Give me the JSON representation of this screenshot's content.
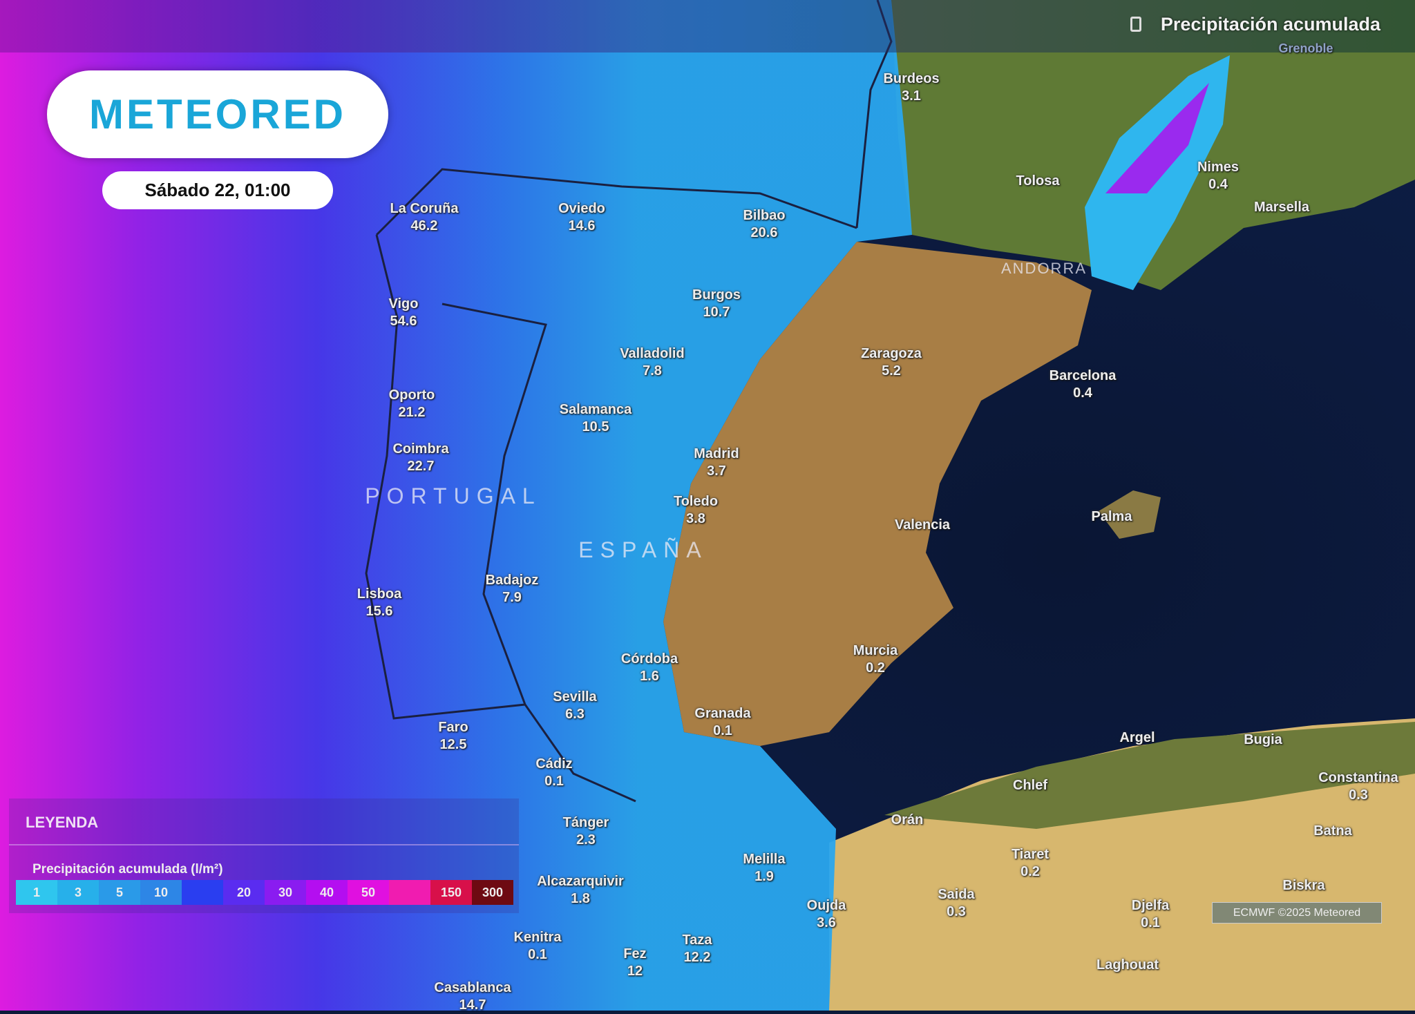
{
  "header": {
    "title": "Precipitación acumulada",
    "subtitle_city": "Grenoble",
    "layer_icon": "layer-icon"
  },
  "brand": {
    "logo_text": "METEORED",
    "color": "#1aa6d8"
  },
  "date_label": "Sábado 22, 01:00",
  "countries": [
    "PORTUGAL",
    "ESPAÑA",
    "ANDORRA"
  ],
  "cities": [
    {
      "name": "La Coruña",
      "value": "46.2"
    },
    {
      "name": "Oviedo",
      "value": "14.6"
    },
    {
      "name": "Bilbao",
      "value": "20.6"
    },
    {
      "name": "Burdeos",
      "value": "3.1"
    },
    {
      "name": "Tolosa",
      "value": ""
    },
    {
      "name": "Nimes",
      "value": "0.4"
    },
    {
      "name": "Marsella",
      "value": ""
    },
    {
      "name": "Vigo",
      "value": "54.6"
    },
    {
      "name": "Burgos",
      "value": "10.7"
    },
    {
      "name": "Valladolid",
      "value": "7.8"
    },
    {
      "name": "Zaragoza",
      "value": "5.2"
    },
    {
      "name": "Barcelona",
      "value": "0.4"
    },
    {
      "name": "Oporto",
      "value": "21.2"
    },
    {
      "name": "Salamanca",
      "value": "10.5"
    },
    {
      "name": "Madrid",
      "value": "3.7"
    },
    {
      "name": "Coimbra",
      "value": "22.7"
    },
    {
      "name": "Toledo",
      "value": "3.8"
    },
    {
      "name": "Valencia",
      "value": ""
    },
    {
      "name": "Palma",
      "value": ""
    },
    {
      "name": "Lisboa",
      "value": "15.6"
    },
    {
      "name": "Badajoz",
      "value": "7.9"
    },
    {
      "name": "Murcia",
      "value": "0.2"
    },
    {
      "name": "Córdoba",
      "value": "1.6"
    },
    {
      "name": "Sevilla",
      "value": "6.3"
    },
    {
      "name": "Granada",
      "value": "0.1"
    },
    {
      "name": "Faro",
      "value": "12.5"
    },
    {
      "name": "Cádiz",
      "value": "0.1"
    },
    {
      "name": "Argel",
      "value": ""
    },
    {
      "name": "Bugia",
      "value": ""
    },
    {
      "name": "Constantina",
      "value": "0.3"
    },
    {
      "name": "Chlef",
      "value": ""
    },
    {
      "name": "Tánger",
      "value": "2.3"
    },
    {
      "name": "Orán",
      "value": ""
    },
    {
      "name": "Batna",
      "value": ""
    },
    {
      "name": "Melilla",
      "value": "1.9"
    },
    {
      "name": "Tiaret",
      "value": "0.2"
    },
    {
      "name": "Alcazarquivir",
      "value": "1.8"
    },
    {
      "name": "Saida",
      "value": "0.3"
    },
    {
      "name": "Djelfa",
      "value": "0.1"
    },
    {
      "name": "Biskra",
      "value": ""
    },
    {
      "name": "Oujda",
      "value": "3.6"
    },
    {
      "name": "Kenitra",
      "value": "0.1"
    },
    {
      "name": "Fez",
      "value": "12"
    },
    {
      "name": "Taza",
      "value": "12.2"
    },
    {
      "name": "Laghouat",
      "value": ""
    },
    {
      "name": "Casablanca",
      "value": "14.7"
    }
  ],
  "legend": {
    "heading": "LEYENDA",
    "title": "Precipitación acumulada (l/m²)",
    "steps": [
      {
        "label": "1",
        "color": "#2fc6ee"
      },
      {
        "label": "3",
        "color": "#27b0ea"
      },
      {
        "label": "5",
        "color": "#2a9ae8"
      },
      {
        "label": "10",
        "color": "#2d86e6"
      },
      {
        "label": "",
        "color": "#2a3ef0"
      },
      {
        "label": "20",
        "color": "#5a2cf0"
      },
      {
        "label": "30",
        "color": "#8a1cf0"
      },
      {
        "label": "40",
        "color": "#b40ef0"
      },
      {
        "label": "50",
        "color": "#e010e0"
      },
      {
        "label": "",
        "color": "#f01cb0"
      },
      {
        "label": "150",
        "color": "#d8104a"
      },
      {
        "label": "300",
        "color": "#6e0a12"
      }
    ]
  },
  "copyright": "ECMWF ©2025 Meteored"
}
